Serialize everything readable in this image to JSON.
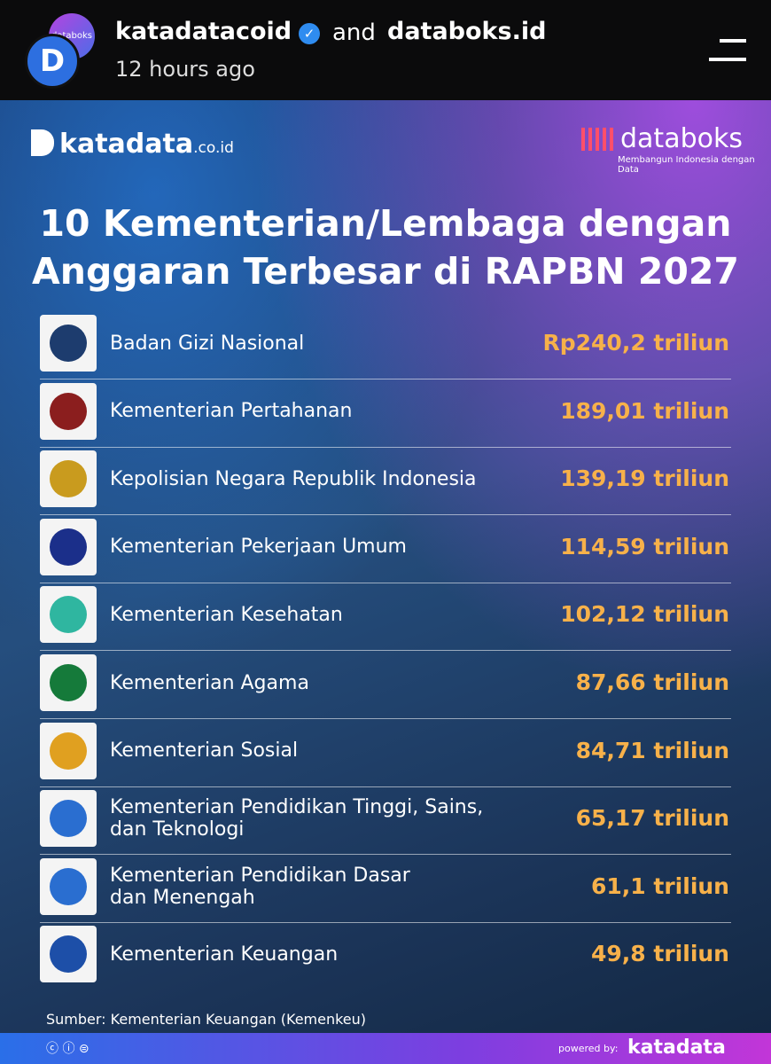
{
  "header": {
    "account": "katadatacoid",
    "connector": "and",
    "coauthor": "databoks.id",
    "time": "12 hours ago",
    "avatar_label": "databoks"
  },
  "infographic": {
    "brand_left": "katadata",
    "brand_left_suffix": ".co.id",
    "brand_right": "databoks",
    "brand_right_tagline": "Membangun Indonesia dengan Data",
    "title": [
      "10 Kementerian/Lembaga dengan",
      "Anggaran Terbesar di RAPBN 2027"
    ],
    "rows": [
      {
        "name": "Badan Gizi Nasional",
        "amount": "Rp240,2 triliun"
      },
      {
        "name": "Kementerian Pertahanan",
        "amount": "189,01 triliun"
      },
      {
        "name": "Kepolisian Negara Republik Indonesia",
        "amount": "139,19 triliun"
      },
      {
        "name": "Kementerian Pekerjaan Umum",
        "amount": "114,59 triliun"
      },
      {
        "name": "Kementerian Kesehatan",
        "amount": "102,12 triliun"
      },
      {
        "name": "Kementerian Agama",
        "amount": "87,66 triliun"
      },
      {
        "name": "Kementerian Sosial",
        "amount": "84,71 triliun"
      },
      {
        "name": "Kementerian Pendidikan Tinggi, Sains,\ndan Teknologi",
        "amount": "65,17 triliun"
      },
      {
        "name": "Kementerian Pendidikan Dasar\ndan Menengah",
        "amount": "61,1 triliun"
      },
      {
        "name": "Kementerian Keuangan",
        "amount": "49,8 triliun"
      }
    ],
    "source": "Sumber: Kementerian Keuangan (Kemenkeu)",
    "powered_by": "powered by:",
    "footer_brand": "katadata"
  }
}
